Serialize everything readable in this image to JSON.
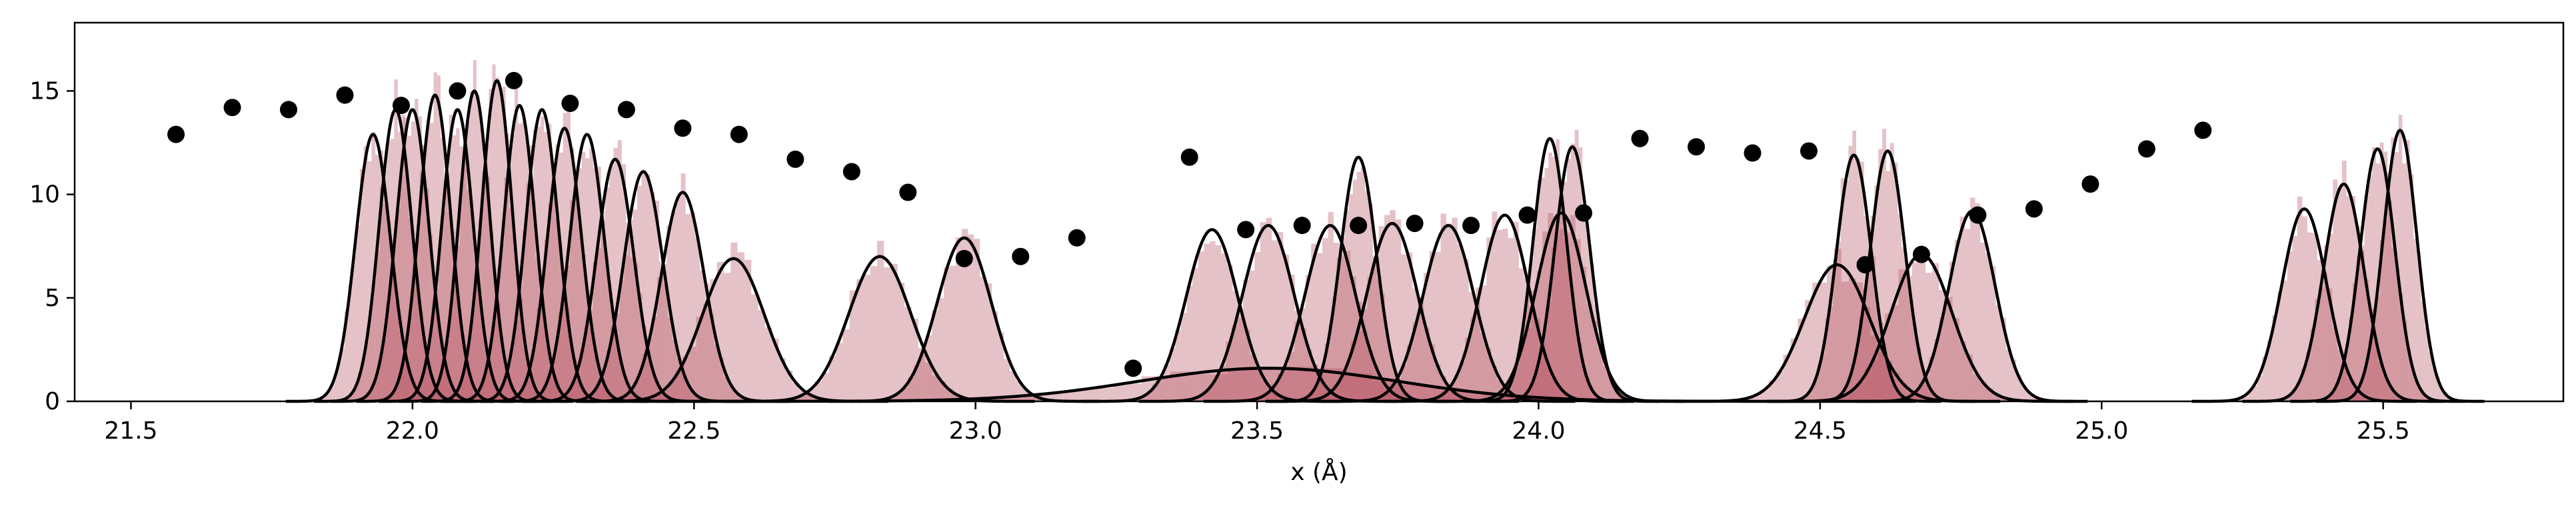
{
  "chart_data": {
    "type": "histogram-gaussian-overlay",
    "title": "",
    "xlabel": "x (Å)",
    "ylabel": "",
    "xlim": [
      21.4,
      25.82
    ],
    "ylim": [
      0,
      18.3
    ],
    "x_ticks": [
      21.5,
      22.0,
      22.5,
      23.0,
      23.5,
      24.0,
      24.5,
      25.0,
      25.5
    ],
    "x_tick_labels": [
      "21.5",
      "22.0",
      "22.5",
      "23.0",
      "23.5",
      "24.0",
      "24.5",
      "25.0",
      "25.5"
    ],
    "y_ticks": [
      0,
      5,
      10,
      15
    ],
    "y_tick_labels": [
      "0",
      "5",
      "10",
      "15"
    ],
    "grid": false,
    "legend": "none",
    "colors": {
      "histogram": "#b5505f",
      "histogram_alpha": 0.35,
      "curve": "#000000",
      "points": "#000000"
    },
    "gaussians": [
      {
        "mu": 21.93,
        "sigma": 0.031,
        "amp": 12.9
      },
      {
        "mu": 21.97,
        "sigma": 0.029,
        "amp": 14.1
      },
      {
        "mu": 22.0,
        "sigma": 0.029,
        "amp": 14.1
      },
      {
        "mu": 22.04,
        "sigma": 0.028,
        "amp": 14.8
      },
      {
        "mu": 22.08,
        "sigma": 0.028,
        "amp": 14.1
      },
      {
        "mu": 22.11,
        "sigma": 0.027,
        "amp": 15.0
      },
      {
        "mu": 22.15,
        "sigma": 0.027,
        "amp": 15.5
      },
      {
        "mu": 22.19,
        "sigma": 0.028,
        "amp": 14.3
      },
      {
        "mu": 22.23,
        "sigma": 0.029,
        "amp": 14.1
      },
      {
        "mu": 22.27,
        "sigma": 0.03,
        "amp": 13.2
      },
      {
        "mu": 22.31,
        "sigma": 0.031,
        "amp": 12.9
      },
      {
        "mu": 22.36,
        "sigma": 0.033,
        "amp": 11.7
      },
      {
        "mu": 22.41,
        "sigma": 0.035,
        "amp": 11.1
      },
      {
        "mu": 22.48,
        "sigma": 0.038,
        "amp": 10.1
      },
      {
        "mu": 22.57,
        "sigma": 0.055,
        "amp": 6.9
      },
      {
        "mu": 22.83,
        "sigma": 0.055,
        "amp": 7.0
      },
      {
        "mu": 22.98,
        "sigma": 0.048,
        "amp": 7.9
      },
      {
        "mu": 23.52,
        "sigma": 0.23,
        "amp": 1.6
      },
      {
        "mu": 23.42,
        "sigma": 0.046,
        "amp": 8.3
      },
      {
        "mu": 23.52,
        "sigma": 0.046,
        "amp": 8.5
      },
      {
        "mu": 23.63,
        "sigma": 0.045,
        "amp": 8.5
      },
      {
        "mu": 23.68,
        "sigma": 0.032,
        "amp": 11.8
      },
      {
        "mu": 23.74,
        "sigma": 0.045,
        "amp": 8.6
      },
      {
        "mu": 23.84,
        "sigma": 0.045,
        "amp": 8.5
      },
      {
        "mu": 23.94,
        "sigma": 0.043,
        "amp": 9.0
      },
      {
        "mu": 24.02,
        "sigma": 0.03,
        "amp": 12.7
      },
      {
        "mu": 24.06,
        "sigma": 0.031,
        "amp": 12.3
      },
      {
        "mu": 24.04,
        "sigma": 0.044,
        "amp": 9.1
      },
      {
        "mu": 24.53,
        "sigma": 0.058,
        "amp": 6.6
      },
      {
        "mu": 24.56,
        "sigma": 0.031,
        "amp": 11.9
      },
      {
        "mu": 24.62,
        "sigma": 0.031,
        "amp": 12.1
      },
      {
        "mu": 24.68,
        "sigma": 0.054,
        "amp": 7.1
      },
      {
        "mu": 24.77,
        "sigma": 0.041,
        "amp": 9.2
      },
      {
        "mu": 25.36,
        "sigma": 0.04,
        "amp": 9.3
      },
      {
        "mu": 25.43,
        "sigma": 0.036,
        "amp": 10.5
      },
      {
        "mu": 25.49,
        "sigma": 0.031,
        "amp": 12.2
      },
      {
        "mu": 25.53,
        "sigma": 0.03,
        "amp": 13.1
      }
    ],
    "points": {
      "x": [
        21.58,
        21.68,
        21.78,
        21.88,
        21.98,
        22.08,
        22.18,
        22.28,
        22.38,
        22.48,
        22.58,
        22.68,
        22.78,
        22.88,
        22.98,
        23.08,
        23.18,
        23.28,
        23.38,
        23.48,
        23.58,
        23.68,
        23.78,
        23.88,
        23.98,
        24.08,
        24.18,
        24.28,
        24.38,
        24.48,
        24.58,
        24.68,
        24.78,
        24.88,
        24.98,
        25.08,
        25.18
      ],
      "y": [
        12.9,
        14.2,
        14.1,
        14.8,
        14.3,
        15.0,
        15.5,
        14.4,
        14.1,
        13.2,
        12.9,
        11.7,
        11.1,
        10.1,
        6.9,
        7.0,
        7.9,
        1.6,
        11.8,
        8.3,
        8.5,
        8.5,
        8.6,
        8.5,
        9.0,
        9.1,
        12.7,
        12.3,
        12.0,
        12.1,
        6.6,
        7.1,
        9.0,
        9.3,
        10.5,
        12.2,
        13.1
      ]
    }
  }
}
